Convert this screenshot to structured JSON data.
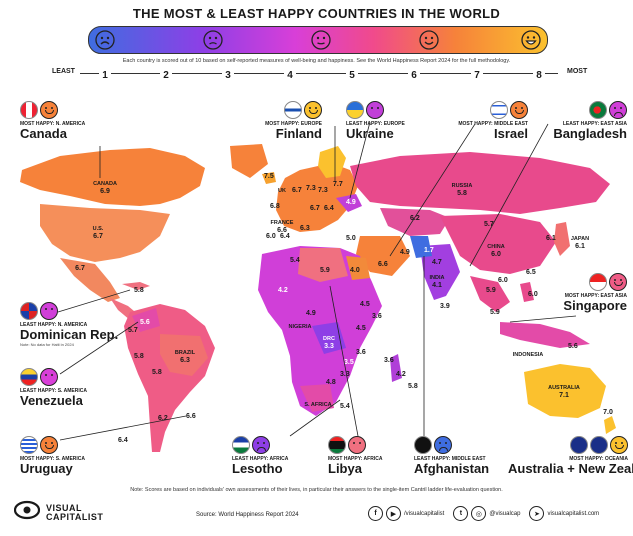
{
  "title": "THE MOST & LEAST HAPPY COUNTRIES IN THE WORLD",
  "scale": {
    "note": "Each country is scored out of 10 based on self-reported measures of well-being and happiness. See the World Happiness Report 2024 for the full methodology.",
    "least": "LEAST",
    "most": "MOST",
    "ticks": [
      "1",
      "2",
      "3",
      "4",
      "5",
      "6",
      "7",
      "8"
    ],
    "colors": [
      "#3f6de0",
      "#8e3fe6",
      "#d83fd8",
      "#f04a8c",
      "#f6823a",
      "#fbc12e"
    ]
  },
  "callouts": {
    "canada": {
      "type": "MOST HAPPY: N. AMERICA",
      "name": "Canada",
      "mood": "happy"
    },
    "finland": {
      "type": "MOST HAPPY: EUROPE",
      "name": "Finland",
      "mood": "happy"
    },
    "ukraine": {
      "type": "LEAST HAPPY: EUROPE",
      "name": "Ukraine",
      "mood": "neutral"
    },
    "israel": {
      "type": "MOST HAPPY: MIDDLE EAST",
      "name": "Israel",
      "mood": "happy"
    },
    "bangladesh": {
      "type": "LEAST HAPPY: EAST ASIA",
      "name": "Bangladesh",
      "mood": "sad"
    },
    "dominican": {
      "type": "LEAST HAPPY: N. AMERICA",
      "name": "Dominican Rep.",
      "note": "Note: No data for Haiti in 2024",
      "mood": "neutral"
    },
    "singapore": {
      "type": "MOST HAPPY: EAST ASIA",
      "name": "Singapore",
      "mood": "happy"
    },
    "venezuela": {
      "type": "LEAST HAPPY: S. AMERICA",
      "name": "Venezuela",
      "mood": "neutral"
    },
    "uruguay": {
      "type": "MOST HAPPY: S. AMERICA",
      "name": "Uruguay",
      "mood": "happy"
    },
    "lesotho": {
      "type": "LEAST HAPPY: AFRICA",
      "name": "Lesotho",
      "mood": "sad"
    },
    "libya": {
      "type": "MOST HAPPY: AFRICA",
      "name": "Libya",
      "mood": "neutral"
    },
    "afghanistan": {
      "type": "LEAST HAPPY: MIDDLE EAST",
      "name": "Afghanistan",
      "mood": "sad"
    },
    "australia": {
      "type": "MOST HAPPY: OCEANIA",
      "name": "Australia + New Zealand",
      "mood": "happy"
    }
  },
  "map_labels": {
    "canada": {
      "name": "CANADA",
      "score": "6.9"
    },
    "us": {
      "name": "U.S.",
      "score": "6.7"
    },
    "mexico": {
      "score": "6.7"
    },
    "brazil": {
      "name": "BRAZIL",
      "score": "6.3"
    },
    "russia": {
      "name": "RUSSIA",
      "score": "5.8"
    },
    "china": {
      "name": "CHINA",
      "score": "6.0"
    },
    "india": {
      "name": "INDIA",
      "score": "4.1"
    },
    "japan": {
      "name": "JAPAN",
      "score": "6.1"
    },
    "australia": {
      "name": "AUSTRALIA",
      "score": "7.1"
    },
    "nz": {
      "score": "7.0"
    },
    "uk": {
      "name": "UK",
      "score": "6.7"
    },
    "france": {
      "name": "FRANCE",
      "score": "6.6"
    },
    "nigeria": {
      "name": "NIGERIA",
      "score": "4.9"
    },
    "drc": {
      "name": "DRC",
      "score": "3.3"
    },
    "safrica": {
      "name": "S. AFRICA",
      "score": "5.4"
    },
    "indonesia": {
      "name": "INDONESIA",
      "score": "5.6"
    },
    "iceland": {
      "score": "7.5"
    },
    "finland": {
      "score": "7.7"
    },
    "kazakh": {
      "score": "6.2"
    },
    "mongolia": {
      "score": "5.7"
    },
    "saudi": {
      "score": "6.6"
    },
    "afghanistan": {
      "score": "1.7"
    },
    "uruguay": {
      "score": "6.6"
    },
    "argentina": {
      "score": "6.2"
    },
    "chile": {
      "score": "6.4"
    },
    "venezuela": {
      "score": "5.6"
    },
    "colombia": {
      "score": "5.7"
    },
    "peru": {
      "score": "5.8"
    },
    "bolivia": {
      "score": "5.8"
    },
    "cuba": {
      "score": "5.8"
    },
    "madagascar": {
      "score": "4.2"
    },
    "mauritius": {
      "score": "5.8"
    },
    "comoros": {
      "score": "3.6"
    },
    "somalia": {
      "score": "3.6"
    },
    "libya": {
      "score": "5.9"
    },
    "egypt": {
      "score": "4.0"
    },
    "algeria": {
      "score": "5.4"
    },
    "mali": {
      "score": "4.2"
    },
    "ethiopia": {
      "score": "4.5"
    },
    "kenya": {
      "score": "4.5"
    },
    "zambia": {
      "score": "3.5"
    },
    "zimbabwe": {
      "score": "3.3"
    },
    "lesotho": {
      "score": "3.2"
    },
    "namibia": {
      "score": "4.8"
    },
    "tanzania": {
      "score": "3.6"
    },
    "philippines": {
      "score": "6.0"
    },
    "thailand": {
      "score": "5.9"
    },
    "vietnam": {
      "score": "6.0"
    },
    "malaysia": {
      "score": "5.9"
    },
    "taiwan": {
      "score": "6.5"
    },
    "skorea": {
      "score": "6.1"
    },
    "ukraine": {
      "score": "4.9"
    },
    "poland": {
      "score": "6.4"
    },
    "turkey": {
      "score": "5.0"
    },
    "iran": {
      "score": "4.9"
    },
    "pakistan": {
      "score": "4.7"
    },
    "srilanka": {
      "score": "3.9"
    },
    "sweden": {
      "score": "7.3"
    },
    "norway": {
      "score": "7.3"
    },
    "germany": {
      "score": "6.7"
    },
    "spain": {
      "score": "6.4"
    },
    "italy": {
      "score": "6.3"
    },
    "ireland": {
      "score": "6.8"
    },
    "portugal": {
      "score": "6.0"
    }
  },
  "footer": {
    "note": "Note: Scores are based on individuals' own assessments of their lives, in particular their answers to the single-item Cantril ladder life-evaluation question.",
    "brand": [
      "VISUAL",
      "CAPITALIST"
    ],
    "source": "Source: World Happiness Report 2024",
    "fb": "/visualcapitalist",
    "ig": "@visualcap",
    "web": "visualcapitalist.com"
  }
}
